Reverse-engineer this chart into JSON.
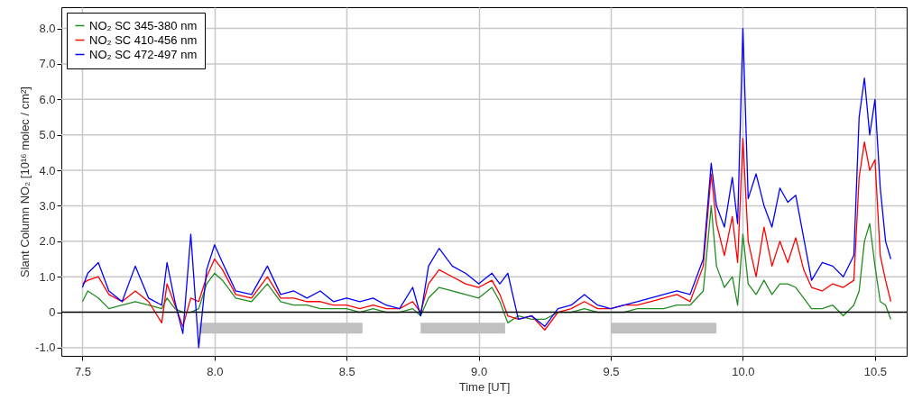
{
  "chart_data": {
    "type": "line",
    "xlabel": "Time [UT]",
    "ylabel": "Slant Column NO₂ [10¹⁶ molec / cm²]",
    "x": [
      7.5,
      7.52,
      7.56,
      7.6,
      7.65,
      7.7,
      7.75,
      7.8,
      7.82,
      7.85,
      7.88,
      7.91,
      7.94,
      7.97,
      8.0,
      8.03,
      8.08,
      8.14,
      8.2,
      8.25,
      8.3,
      8.35,
      8.4,
      8.45,
      8.5,
      8.55,
      8.6,
      8.65,
      8.7,
      8.75,
      8.78,
      8.81,
      8.85,
      8.9,
      8.95,
      9.0,
      9.05,
      9.08,
      9.11,
      9.15,
      9.2,
      9.25,
      9.3,
      9.35,
      9.4,
      9.45,
      9.5,
      9.55,
      9.6,
      9.65,
      9.7,
      9.75,
      9.8,
      9.85,
      9.88,
      9.9,
      9.93,
      9.96,
      9.98,
      10.0,
      10.02,
      10.05,
      10.08,
      10.11,
      10.14,
      10.17,
      10.2,
      10.23,
      10.26,
      10.3,
      10.34,
      10.38,
      10.42,
      10.44,
      10.46,
      10.48,
      10.5,
      10.52,
      10.54,
      10.56
    ],
    "series": [
      {
        "name": "NO₂ SC 345-380 nm",
        "color": "#228b22",
        "values": [
          0.3,
          0.6,
          0.4,
          0.1,
          0.2,
          0.3,
          0.2,
          0.1,
          0.4,
          0.1,
          0.0,
          0.0,
          0.1,
          0.8,
          1.1,
          0.9,
          0.4,
          0.3,
          0.8,
          0.3,
          0.2,
          0.2,
          0.1,
          0.1,
          0.1,
          0.0,
          0.1,
          0.0,
          0.0,
          0.1,
          -0.1,
          0.4,
          0.7,
          0.6,
          0.5,
          0.4,
          0.7,
          0.3,
          -0.3,
          -0.1,
          -0.2,
          -0.2,
          0.0,
          0.0,
          0.1,
          0.0,
          0.0,
          0.0,
          0.1,
          0.1,
          0.1,
          0.2,
          0.2,
          0.6,
          3.0,
          1.3,
          0.7,
          1.0,
          0.2,
          2.2,
          0.8,
          0.5,
          0.9,
          0.5,
          0.8,
          0.8,
          0.7,
          0.4,
          0.1,
          0.1,
          0.2,
          -0.1,
          0.2,
          0.6,
          2.0,
          2.5,
          1.3,
          0.3,
          0.2,
          -0.2
        ]
      },
      {
        "name": "NO₂ SC 410-456 nm",
        "color": "#ff0000",
        "values": [
          0.8,
          0.9,
          1.0,
          0.5,
          0.3,
          0.6,
          0.3,
          -0.3,
          0.8,
          0.2,
          -0.4,
          0.4,
          0.3,
          1.0,
          1.5,
          1.2,
          0.5,
          0.4,
          1.0,
          0.4,
          0.4,
          0.3,
          0.3,
          0.2,
          0.2,
          0.1,
          0.2,
          0.1,
          0.1,
          0.3,
          0.0,
          0.8,
          1.2,
          1.0,
          0.8,
          0.7,
          0.9,
          0.5,
          -0.1,
          -0.2,
          -0.1,
          -0.5,
          0.0,
          0.1,
          0.3,
          0.1,
          0.1,
          0.2,
          0.2,
          0.3,
          0.4,
          0.5,
          0.3,
          1.3,
          3.9,
          2.5,
          1.6,
          2.7,
          1.4,
          4.9,
          2.0,
          1.0,
          2.4,
          1.3,
          2.0,
          1.4,
          2.1,
          1.2,
          0.7,
          0.6,
          0.8,
          0.7,
          0.9,
          3.8,
          4.8,
          4.0,
          4.3,
          1.6,
          0.9,
          0.3
        ]
      },
      {
        "color": "#c0c0c0",
        "x": [
          7.94,
          8.56
        ],
        "values": [
          -0.45,
          -0.45
        ]
      },
      {
        "color": "#c0c0c0",
        "x": [
          8.78,
          9.1
        ],
        "values": [
          -0.45,
          -0.45
        ]
      },
      {
        "color": "#c0c0c0",
        "x": [
          9.5,
          9.9
        ],
        "values": [
          -0.45,
          -0.45
        ]
      },
      {
        "name": "NO₂ SC 472-497 nm",
        "color": "#0000ff",
        "values": [
          0.7,
          1.1,
          1.4,
          0.6,
          0.3,
          1.3,
          0.4,
          0.2,
          1.4,
          0.3,
          -0.6,
          2.2,
          -1.0,
          1.2,
          1.9,
          1.4,
          0.6,
          0.5,
          1.3,
          0.5,
          0.6,
          0.4,
          0.6,
          0.3,
          0.4,
          0.3,
          0.4,
          0.2,
          0.1,
          0.7,
          -0.1,
          1.3,
          1.8,
          1.3,
          1.1,
          0.8,
          1.1,
          0.8,
          1.1,
          -0.2,
          -0.1,
          -0.4,
          0.1,
          0.2,
          0.5,
          0.2,
          0.1,
          0.2,
          0.3,
          0.4,
          0.5,
          0.6,
          0.5,
          1.5,
          4.2,
          3.0,
          2.4,
          3.8,
          2.5,
          8.0,
          3.2,
          3.9,
          3.0,
          2.4,
          3.5,
          3.1,
          3.3,
          2.1,
          0.9,
          1.4,
          1.3,
          1.0,
          1.6,
          5.5,
          6.6,
          5.0,
          6.0,
          3.5,
          2.0,
          1.5
        ]
      }
    ],
    "xlim": [
      7.42,
      10.62
    ],
    "xticks": [
      7.5,
      {
        "value": 8,
        "label": "8.0"
      },
      8.5,
      {
        "value": 9,
        "label": "9.0"
      },
      9.5,
      {
        "value": 10,
        "label": "10.0"
      },
      10.5
    ],
    "ylim": [
      -1.23,
      8.6
    ],
    "yticks": [
      {
        "value": -1,
        "label": "-1.0"
      },
      0,
      {
        "value": 1,
        "label": "1.0"
      },
      {
        "value": 2,
        "label": "2.0"
      },
      {
        "value": 3,
        "label": "3.0"
      },
      {
        "value": 4,
        "label": "4.0"
      },
      {
        "value": 5,
        "label": "5.0"
      },
      {
        "value": 6,
        "label": "6.0"
      },
      {
        "value": 7,
        "label": "7.0"
      },
      {
        "value": 8,
        "label": "8.0"
      }
    ],
    "ref_lines": [
      {
        "axis": "y",
        "value": 0,
        "color": "#000000"
      }
    ],
    "grid": true,
    "legend": "top left",
    "line_style": "solid"
  }
}
